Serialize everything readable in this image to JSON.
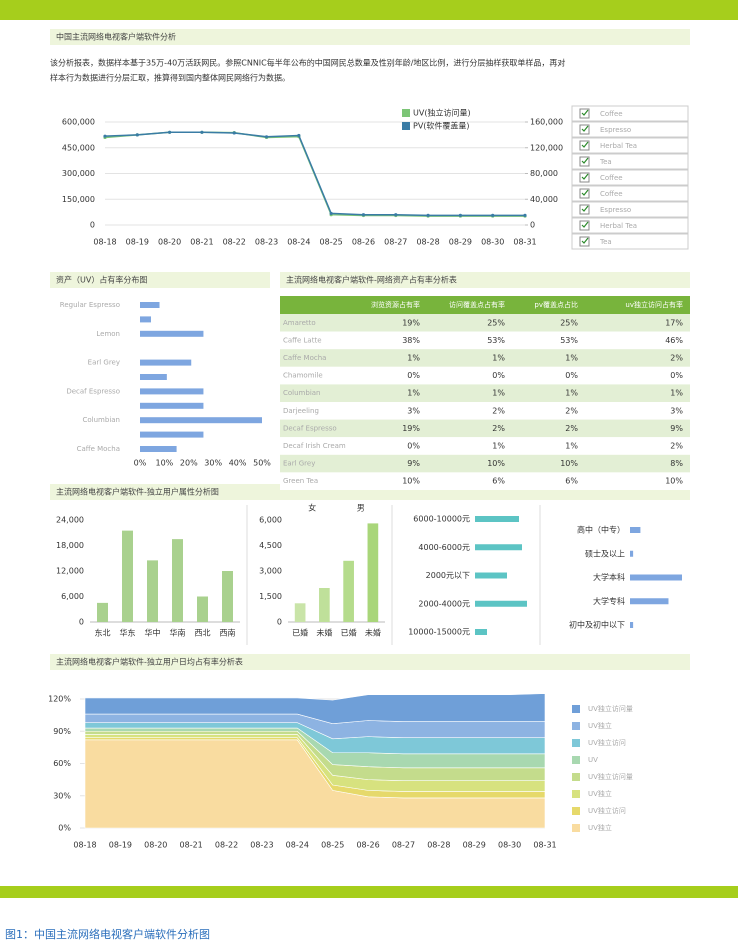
{
  "page_title": "中国主流网络电视客户端软件分析",
  "intro": [
    "该分析报表，数据样本基于35万-40万活跃网民。参照CNNIC每半年公布的中国网民总数量及性别年龄/地区比例，进行分层抽样获取单样品，再对",
    "样本行为数据进行分层汇取，推算得到国内整体网民网络行为数据。"
  ],
  "filter_list": [
    "Coffee",
    "Espresso",
    "Herbal Tea",
    "Tea",
    "Coffee",
    "Coffee",
    "Espresso",
    "Herbal Tea",
    "Tea"
  ],
  "section_titles": [
    "资产（UV）占有率分布图",
    "主流网络电视客户端软件-网络资产占有率分析表",
    "主流网络电视客户端软件-独立用户属性分析图",
    "主流网络电视客户端软件-独立用户日均占有率分析表"
  ],
  "table": {
    "header": [
      "浏览资源占有率",
      "访问覆盖点占有率",
      "pv覆盖点占比",
      "uv独立访问占有率"
    ],
    "rows": [
      [
        "Amaretto",
        "19%",
        "25%",
        "25%",
        "17%"
      ],
      [
        "Caffe Latte",
        "38%",
        "53%",
        "53%",
        "46%"
      ],
      [
        "Caffe Mocha",
        "1%",
        "1%",
        "1%",
        "2%"
      ],
      [
        "Chamomile",
        "0%",
        "0%",
        "0%",
        "0%"
      ],
      [
        "Columbian",
        "1%",
        "1%",
        "1%",
        "1%"
      ],
      [
        "Darjeeling",
        "3%",
        "2%",
        "2%",
        "3%"
      ],
      [
        "Decaf Espresso",
        "19%",
        "2%",
        "2%",
        "9%"
      ],
      [
        "Decaf Irish Cream",
        "0%",
        "1%",
        "1%",
        "2%"
      ],
      [
        "Earl Grey",
        "9%",
        "10%",
        "10%",
        "8%"
      ],
      [
        "Green Tea",
        "10%",
        "6%",
        "6%",
        "10%"
      ]
    ]
  },
  "caption": "图1：中国主流网络电视客户端软件分析图",
  "chart_data": [
    {
      "type": "line",
      "x": [
        "08-18",
        "08-19",
        "08-20",
        "08-21",
        "08-22",
        "08-23",
        "08-24",
        "08-25",
        "08-26",
        "08-27",
        "08-28",
        "08-29",
        "08-30",
        "08-31"
      ],
      "series": [
        {
          "name": "UV(独立访问量)",
          "color": "#7cc576",
          "values": [
            510000,
            525000,
            540000,
            540000,
            538000,
            510000,
            515000,
            60000,
            55000,
            55000,
            52000,
            52000,
            52000,
            52000
          ]
        },
        {
          "name": "PV(软件覆盖量)",
          "color": "#3a7ca5",
          "axis": "y2",
          "values": [
            138000,
            140000,
            144000,
            144000,
            143000,
            137000,
            139000,
            18000,
            16000,
            16000,
            15000,
            15000,
            15000,
            15000
          ]
        }
      ],
      "ylim": [
        0,
        600000
      ],
      "yticks": [
        0,
        {
          "value": 150000,
          "label": "150,000"
        },
        {
          "value": 300000,
          "label": "300,000"
        },
        {
          "value": 450000,
          "label": "450,000"
        },
        {
          "value": 600000,
          "label": "600,000"
        }
      ],
      "y2lim": [
        0,
        160000
      ],
      "y2ticks": [
        0,
        {
          "value": 40000,
          "label": "40,000"
        },
        {
          "value": 80000,
          "label": "80,000"
        },
        {
          "value": 120000,
          "label": "120,000"
        },
        {
          "value": 160000,
          "label": "160,000"
        }
      ],
      "grid": true
    },
    {
      "type": "hbar",
      "categories": [
        "Regular Espresso",
        null,
        "Lemon",
        null,
        "Earl Grey",
        null,
        "Decaf Espresso",
        null,
        "Columbian",
        null,
        "Caffe Mocha"
      ],
      "values": [
        8,
        4.5,
        26,
        0,
        21,
        11,
        26,
        26,
        50,
        26,
        15
      ],
      "color": "#7ea6e0",
      "xlim": [
        0,
        50
      ],
      "xticks": [
        {
          "value": 0,
          "label": "0%"
        },
        {
          "value": 10,
          "label": "10%"
        },
        {
          "value": 20,
          "label": "20%"
        },
        {
          "value": 30,
          "label": "30%"
        },
        {
          "value": 40,
          "label": "40%"
        },
        {
          "value": 50,
          "label": "50%"
        }
      ]
    },
    {
      "type": "bar",
      "categories": [
        "东北",
        "华东",
        "华中",
        "华南",
        "西北",
        "西南"
      ],
      "values": [
        4500,
        21500,
        14500,
        19500,
        6000,
        12000
      ],
      "color": "#a9d18e",
      "ylim": [
        0,
        24000
      ],
      "yticks": [
        0,
        {
          "value": 6000,
          "label": "6,000"
        },
        {
          "value": 12000,
          "label": "12,000"
        },
        {
          "value": 18000,
          "label": "18,000"
        },
        {
          "value": 24000,
          "label": "24,000"
        }
      ]
    },
    {
      "type": "bar",
      "groups": [
        "女",
        "男"
      ],
      "categories": [
        "已婚",
        "未婚",
        "已婚",
        "未婚"
      ],
      "values": [
        1100,
        2000,
        3600,
        5800
      ],
      "colors": [
        "#c9e4a8",
        "#bfe09a",
        "#b5dc8c",
        "#a9d67a"
      ],
      "ylim": [
        0,
        6000
      ],
      "yticks": [
        0,
        {
          "value": 1500,
          "label": "1,500"
        },
        {
          "value": 3000,
          "label": "3,000"
        },
        {
          "value": 4500,
          "label": "4,500"
        },
        {
          "value": 6000,
          "label": "6,000"
        }
      ]
    },
    {
      "type": "hbar",
      "categories": [
        "6000-10000元",
        "4000-6000元",
        "2000元以下",
        "2000-4000元",
        "10000-15000元"
      ],
      "values": [
        44,
        47,
        32,
        52,
        12
      ],
      "color": "#5cc4c4"
    },
    {
      "type": "hbar",
      "categories": [
        "高中（中专）",
        "硕士及以上",
        "大学本科",
        "大学专科",
        "初中及初中以下"
      ],
      "values": [
        10,
        3,
        50,
        37,
        3
      ],
      "color": "#7ea6e0"
    },
    {
      "type": "area",
      "x": [
        "08-18",
        "08-19",
        "08-20",
        "08-21",
        "08-22",
        "08-23",
        "08-24",
        "08-25",
        "08-26",
        "08-27",
        "08-28",
        "08-29",
        "08-30",
        "08-31"
      ],
      "series": [
        {
          "name": "UV独立访问量",
          "color": "#6f9fd8",
          "values": [
            15,
            15,
            15,
            15,
            15,
            15,
            15,
            22,
            24,
            25,
            25,
            25,
            25,
            26
          ]
        },
        {
          "name": "UV独立",
          "color": "#8db3e2",
          "values": [
            8,
            8,
            8,
            8,
            8,
            8,
            8,
            14,
            15,
            15,
            15,
            15,
            15,
            15
          ]
        },
        {
          "name": "UV独立访问",
          "color": "#7ec8d8",
          "values": [
            5,
            5,
            5,
            5,
            5,
            5,
            5,
            13,
            15,
            15,
            15,
            15,
            15,
            15
          ]
        },
        {
          "name": "UV",
          "color": "#a8d8b0",
          "values": [
            3,
            3,
            3,
            3,
            3,
            3,
            3,
            11,
            13,
            13,
            13,
            13,
            13,
            13
          ]
        },
        {
          "name": "UV独立访问量",
          "color": "#c4dc8c",
          "values": [
            3,
            3,
            3,
            3,
            3,
            3,
            3,
            10,
            12,
            12,
            12,
            12,
            12,
            12
          ]
        },
        {
          "name": "UV独立",
          "color": "#d7e27f",
          "values": [
            3,
            3,
            3,
            3,
            3,
            3,
            3,
            9,
            10,
            10,
            10,
            10,
            10,
            10
          ]
        },
        {
          "name": "UV独立访问",
          "color": "#e6d96b",
          "values": [
            2,
            2,
            2,
            2,
            2,
            2,
            2,
            5,
            6,
            6,
            6,
            6,
            6,
            6
          ]
        },
        {
          "name": "UV独立",
          "color": "#f9dca0",
          "values": [
            82,
            82,
            82,
            82,
            82,
            82,
            82,
            35,
            29,
            28,
            28,
            28,
            28,
            28
          ]
        }
      ],
      "ylim": [
        0,
        125
      ],
      "yticks": [
        {
          "value": 0,
          "label": "0%"
        },
        {
          "value": 30,
          "label": "30%"
        },
        {
          "value": 60,
          "label": "60%"
        },
        {
          "value": 90,
          "label": "90%"
        },
        {
          "value": 120,
          "label": "120%"
        }
      ],
      "grid": true
    }
  ]
}
